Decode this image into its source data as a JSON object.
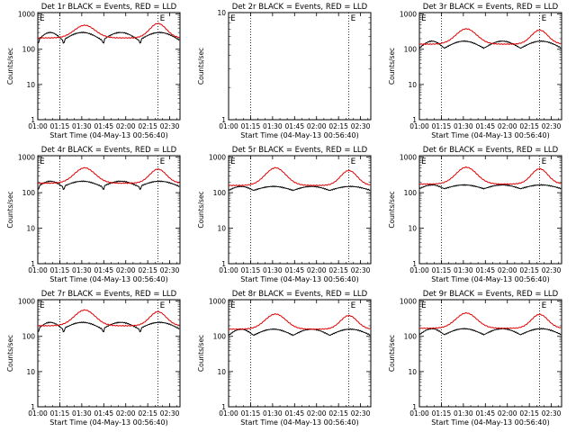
{
  "chart_data": {
    "type": "line",
    "common": {
      "xlabel": "Start Time (04-May-13 00:56:40)",
      "ylabel": "Counts/sec",
      "xticks": [
        "01:00",
        "01:15",
        "01:30",
        "01:45",
        "02:00",
        "02:15",
        "02:30"
      ],
      "xlim_minutes": [
        60,
        157
      ],
      "ylog": true,
      "yticks": [
        "1",
        "10",
        "100",
        "1000"
      ],
      "vertical_markers_minutes": [
        75,
        142,
        157
      ],
      "marker_label": "E",
      "series_names": [
        "Events",
        "LLD"
      ],
      "series_colors": [
        "#000000",
        "#e00000"
      ]
    },
    "panels": [
      {
        "title": "Det 1r BLACK = Events, RED = LLD",
        "ylim": [
          1,
          1100
        ],
        "empty": false,
        "events": {
          "base": 200,
          "peak": 300,
          "steps": true
        },
        "lld": {
          "base": 210,
          "peak1": 480,
          "peak2": 540
        }
      },
      {
        "title": "Det 2r BLACK = Events, RED = LLD",
        "ylim": [
          1,
          10
        ],
        "empty": true
      },
      {
        "title": "Det 3r BLACK = Events, RED = LLD",
        "ylim": [
          1,
          1100
        ],
        "empty": false,
        "events": {
          "base": 120,
          "peak": 170,
          "steps": false
        },
        "lld": {
          "base": 140,
          "peak1": 380,
          "peak2": 350
        }
      },
      {
        "title": "Det 4r BLACK = Events, RED = LLD",
        "ylim": [
          1,
          1100
        ],
        "empty": false,
        "events": {
          "base": 165,
          "peak": 210,
          "steps": true
        },
        "lld": {
          "base": 185,
          "peak1": 500,
          "peak2": 460
        }
      },
      {
        "title": "Det 5r BLACK = Events, RED = LLD",
        "ylim": [
          1,
          1100
        ],
        "empty": false,
        "events": {
          "base": 130,
          "peak": 150,
          "steps": false
        },
        "lld": {
          "base": 160,
          "peak1": 500,
          "peak2": 420
        }
      },
      {
        "title": "Det 6r BLACK = Events, RED = LLD",
        "ylim": [
          1,
          1100
        ],
        "empty": false,
        "events": {
          "base": 145,
          "peak": 165,
          "steps": false
        },
        "lld": {
          "base": 175,
          "peak1": 520,
          "peak2": 470
        }
      },
      {
        "title": "Det 7r BLACK = Events, RED = LLD",
        "ylim": [
          1,
          1100
        ],
        "empty": false,
        "events": {
          "base": 180,
          "peak": 250,
          "steps": true
        },
        "lld": {
          "base": 200,
          "peak1": 560,
          "peak2": 500
        }
      },
      {
        "title": "Det 8r BLACK = Events, RED = LLD",
        "ylim": [
          1,
          1100
        ],
        "empty": false,
        "events": {
          "base": 120,
          "peak": 160,
          "steps": false
        },
        "lld": {
          "base": 160,
          "peak1": 430,
          "peak2": 390
        }
      },
      {
        "title": "Det 9r BLACK = Events, RED = LLD",
        "ylim": [
          1,
          1100
        ],
        "empty": false,
        "events": {
          "base": 125,
          "peak": 165,
          "steps": false
        },
        "lld": {
          "base": 170,
          "peak1": 460,
          "peak2": 420
        }
      }
    ]
  }
}
